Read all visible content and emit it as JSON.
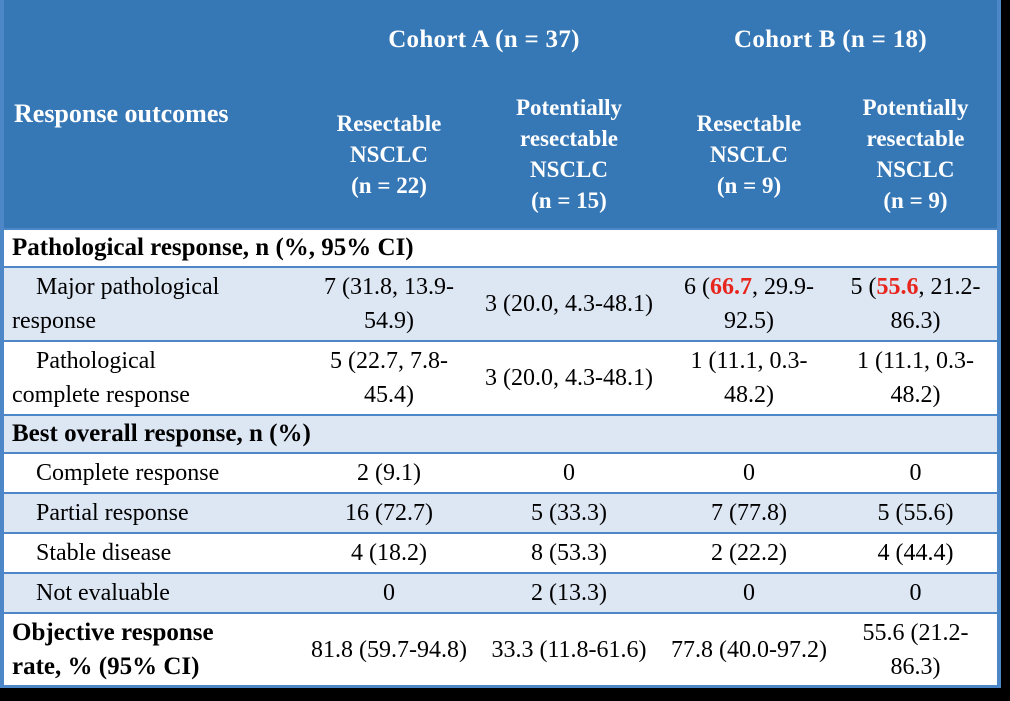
{
  "colors": {
    "header_bg": "#3677b6",
    "band_bg": "#dde6f3",
    "border": "#4d87c7",
    "highlight_red": "#e8251c",
    "header_text": "#ffffff",
    "body_text": "#000000",
    "page_bg": "#000000"
  },
  "chart_data": {
    "type": "table",
    "header": {
      "row_header": "Response outcomes",
      "groups": [
        {
          "label": "Cohort A (n = 37)",
          "span": 2
        },
        {
          "label": "Cohort B (n = 18)",
          "span": 2
        }
      ],
      "columns": [
        "Resectable\nNSCLC\n(n = 22)",
        "Potentially\nresectable\nNSCLC\n(n = 15)",
        "Resectable\nNSCLC\n(n = 9)",
        "Potentially\nresectable\nNSCLC\n(n = 9)"
      ]
    },
    "rows": [
      {
        "kind": "section",
        "banded": false,
        "label": "Pathological response, n (%, 95% CI)"
      },
      {
        "kind": "data",
        "banded": true,
        "indent": true,
        "label": "Major pathological\nresponse",
        "values": [
          [
            {
              "t": "7 (31.8, 13.9-54.9)"
            }
          ],
          [
            {
              "t": "3 (20.0, 4.3-48.1)"
            }
          ],
          [
            {
              "t": "6 ("
            },
            {
              "t": "66.7",
              "red": true
            },
            {
              "t": ", 29.9-92.5)"
            }
          ],
          [
            {
              "t": "5 ("
            },
            {
              "t": "55.6",
              "red": true
            },
            {
              "t": ", 21.2-86.3)"
            }
          ]
        ]
      },
      {
        "kind": "data",
        "banded": false,
        "indent": true,
        "label": "Pathological\ncomplete response",
        "values": [
          [
            {
              "t": "5 (22.7, 7.8-45.4)"
            }
          ],
          [
            {
              "t": "3 (20.0, 4.3-48.1)"
            }
          ],
          [
            {
              "t": "1 (11.1, 0.3-48.2)"
            }
          ],
          [
            {
              "t": "1 (11.1, 0.3-48.2)"
            }
          ]
        ]
      },
      {
        "kind": "section",
        "banded": true,
        "label": "Best overall response, n (%)"
      },
      {
        "kind": "data",
        "banded": false,
        "indent": true,
        "label": "Complete response",
        "values": [
          [
            {
              "t": "2 (9.1)"
            }
          ],
          [
            {
              "t": "0"
            }
          ],
          [
            {
              "t": "0"
            }
          ],
          [
            {
              "t": "0"
            }
          ]
        ]
      },
      {
        "kind": "data",
        "banded": true,
        "indent": true,
        "label": "Partial response",
        "values": [
          [
            {
              "t": "16 (72.7)"
            }
          ],
          [
            {
              "t": "5 (33.3)"
            }
          ],
          [
            {
              "t": "7 (77.8)"
            }
          ],
          [
            {
              "t": "5 (55.6)"
            }
          ]
        ]
      },
      {
        "kind": "data",
        "banded": false,
        "indent": true,
        "label": "Stable disease",
        "values": [
          [
            {
              "t": "4 (18.2)"
            }
          ],
          [
            {
              "t": "8 (53.3)"
            }
          ],
          [
            {
              "t": "2 (22.2)"
            }
          ],
          [
            {
              "t": "4 (44.4)"
            }
          ]
        ]
      },
      {
        "kind": "data",
        "banded": true,
        "indent": true,
        "label": "Not evaluable",
        "values": [
          [
            {
              "t": "0"
            }
          ],
          [
            {
              "t": "2 (13.3)"
            }
          ],
          [
            {
              "t": "0"
            }
          ],
          [
            {
              "t": "0"
            }
          ]
        ]
      },
      {
        "kind": "data",
        "banded": false,
        "indent": false,
        "bold": true,
        "label": "Objective response\nrate, % (95% CI)",
        "values": [
          [
            {
              "t": "81.8 (59.7-94.8)"
            }
          ],
          [
            {
              "t": "33.3 (11.8-61.6)"
            }
          ],
          [
            {
              "t": "77.8 (40.0-97.2)"
            }
          ],
          [
            {
              "t": "55.6 (21.2-86.3)"
            }
          ]
        ]
      }
    ]
  }
}
